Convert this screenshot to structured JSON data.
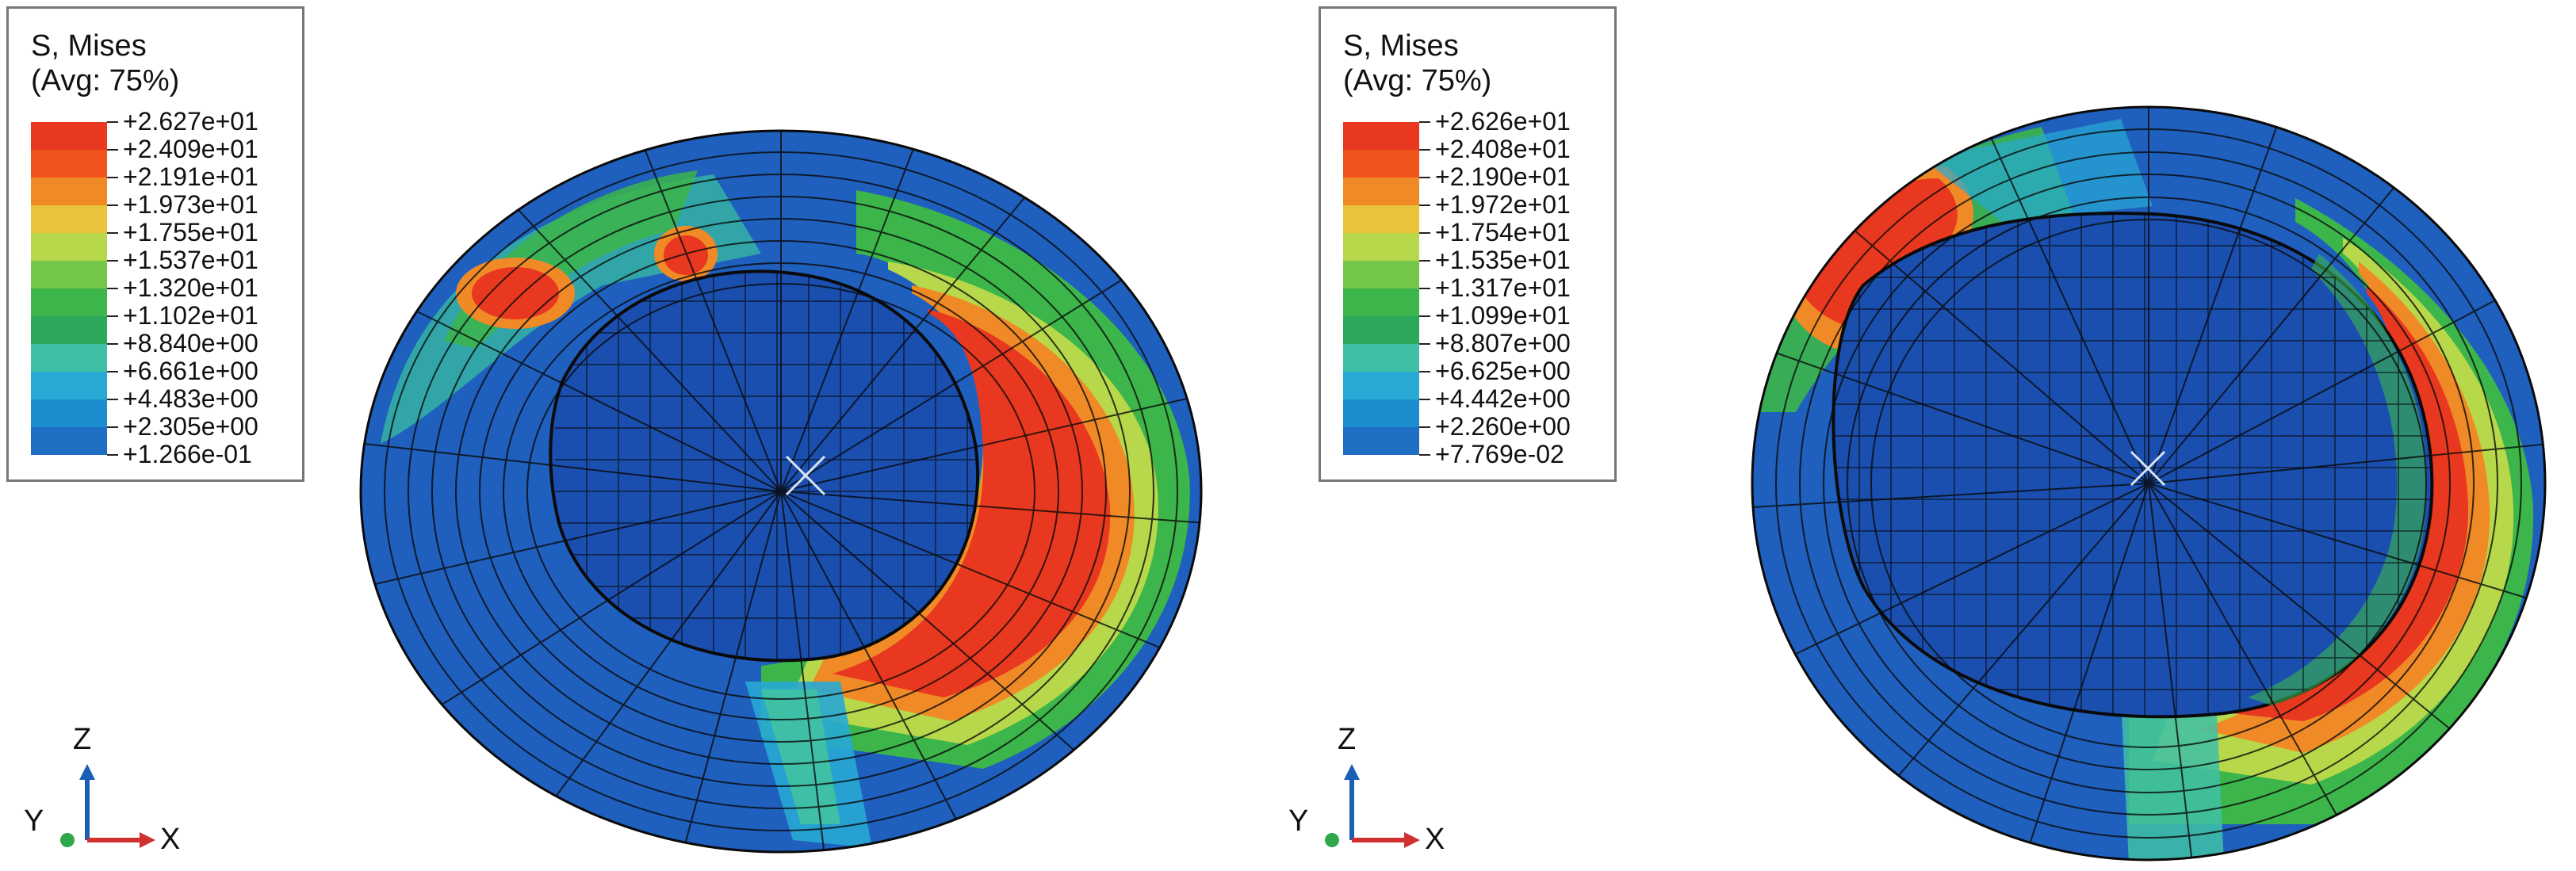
{
  "panels": [
    {
      "legend": {
        "title": "S, Mises",
        "avg": "(Avg: 75%)",
        "values": [
          "+2.627e+01",
          "+2.409e+01",
          "+2.191e+01",
          "+1.973e+01",
          "+1.755e+01",
          "+1.537e+01",
          "+1.320e+01",
          "+1.102e+01",
          "+8.840e+00",
          "+6.661e+00",
          "+4.483e+00",
          "+2.305e+00",
          "+1.266e-01"
        ]
      },
      "axes": {
        "z": "Z",
        "y": "Y",
        "x": "X"
      }
    },
    {
      "legend": {
        "title": "S, Mises",
        "avg": "(Avg: 75%)",
        "values": [
          "+2.626e+01",
          "+2.408e+01",
          "+2.190e+01",
          "+1.972e+01",
          "+1.754e+01",
          "+1.535e+01",
          "+1.317e+01",
          "+1.099e+01",
          "+8.807e+00",
          "+6.625e+00",
          "+4.442e+00",
          "+2.260e+00",
          "+7.769e-02"
        ]
      },
      "axes": {
        "z": "Z",
        "y": "Y",
        "x": "X"
      }
    }
  ],
  "colors": {
    "scale": [
      "#e8381f",
      "#f0541c",
      "#f08a26",
      "#e9c43a",
      "#b7d84a",
      "#74c64a",
      "#3cb54a",
      "#2ba85a",
      "#3fc0a6",
      "#27a9d4",
      "#1c8ed0",
      "#1e6fc4",
      "#1f55b2"
    ],
    "mesh_line": "#0a0a0a",
    "axis_z": "#1a5fb4",
    "axis_x": "#d03030",
    "axis_y": "#2ea84a"
  }
}
